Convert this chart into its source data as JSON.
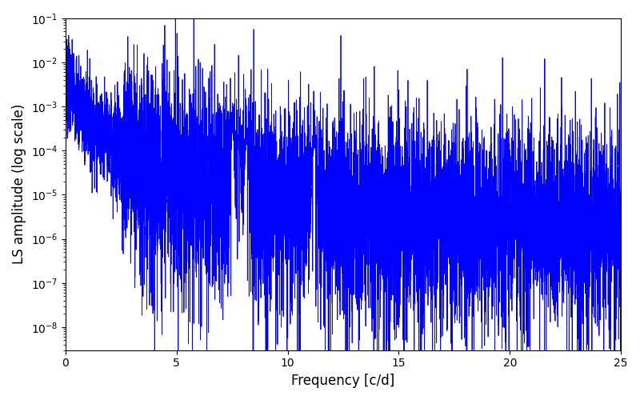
{
  "xlabel": "Frequency [c/d]",
  "ylabel": "LS amplitude (log scale)",
  "xlim": [
    0,
    25
  ],
  "ylim_log": [
    3e-09,
    0.1
  ],
  "line_color": "#0000ff",
  "line_width": 0.6,
  "background_color": "#ffffff",
  "figsize": [
    8.0,
    5.0
  ],
  "dpi": 100,
  "freq_min": 0.0,
  "freq_max": 25.0,
  "n_points": 8000,
  "seed": 7
}
